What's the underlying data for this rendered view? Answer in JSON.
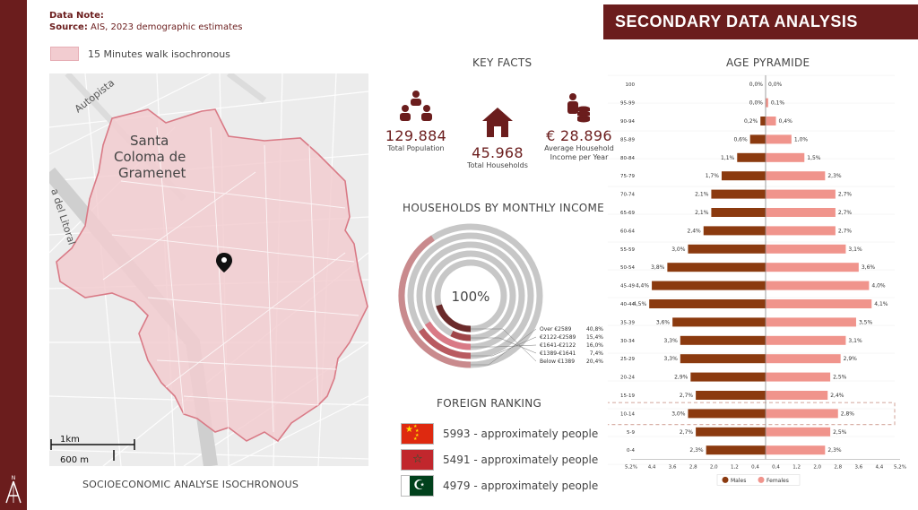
{
  "data_note": {
    "title": "Data Note:",
    "source_label": "Source:",
    "source_text": "AIS, 2023 demographic estimates"
  },
  "map": {
    "legend_label": "15 Minutes walk isochronous",
    "city_line1": "Santa",
    "city_line2": "Coloma de",
    "city_line3": "Gramenet",
    "road_label_1": "Autopista",
    "road_label_2": "a del Litoral",
    "scale_km": "1km",
    "scale_m": "600 m",
    "caption": "SOCIOECONOMIC ANALYSE ISOCHRONOUS",
    "isochrone_fill": "#f2ccd0",
    "isochrone_stroke": "#d97a86"
  },
  "banner": {
    "title": "SECONDARY DATA ANALYSIS"
  },
  "key_facts": {
    "title": "KEY FACTS",
    "population": {
      "value": "129.884",
      "label": "Total Population",
      "icon": "people-icon"
    },
    "households": {
      "value": "45.968",
      "label": "Total Households",
      "icon": "house-icon"
    },
    "income": {
      "value": "€ 28.896",
      "label_line1": "Average Household",
      "label_line2": "Income per Year",
      "icon": "person-coins-icon"
    }
  },
  "income_chart": {
    "title": "HOUSEHOLDS BY MONTHLY INCOME",
    "center_label": "100%",
    "rings": [
      {
        "label": "Over €2589",
        "value": "40,8%",
        "pct": 40.8,
        "color": "#c98a8d"
      },
      {
        "label": "€2122-€2589",
        "value": "15,4%",
        "pct": 15.4,
        "color": "#b95a60"
      },
      {
        "label": "€1641-€2122",
        "value": "16,0%",
        "pct": 16.0,
        "color": "#d97a86"
      },
      {
        "label": "€1389-€1641",
        "value": "7,4%",
        "pct": 7.4,
        "color": "#a04549"
      },
      {
        "label": "Below €1389",
        "value": "20,4%",
        "pct": 20.4,
        "color": "#6b2a2a"
      }
    ],
    "track_color": "#c7c7c7"
  },
  "foreign_ranking": {
    "title": "FOREIGN RANKING",
    "rows": [
      {
        "flag": "china-flag-icon",
        "text": "5993 - approximately people"
      },
      {
        "flag": "morocco-flag-icon",
        "text": "5491 - approximately people"
      },
      {
        "flag": "pakistan-flag-icon",
        "text": "4979 - approximately people"
      }
    ]
  },
  "chart_data": {
    "type": "bar",
    "title": "AGE PYRAMIDE",
    "orientation": "horizontal",
    "categories": [
      "100",
      "95-99",
      "90-94",
      "85-89",
      "80-84",
      "75-79",
      "70-74",
      "65-69",
      "60-64",
      "55-59",
      "50-54",
      "45-49",
      "40-44",
      "35-39",
      "30-34",
      "25-29",
      "20-24",
      "15-19",
      "10-14",
      "5-9",
      "0-4"
    ],
    "series": [
      {
        "name": "Males",
        "color": "#8b3a0f",
        "values": [
          0.0,
          0.0,
          0.2,
          0.6,
          1.1,
          1.7,
          2.1,
          2.1,
          2.4,
          3.0,
          3.8,
          4.4,
          4.5,
          3.6,
          3.3,
          3.3,
          2.9,
          2.7,
          3.0,
          2.7,
          2.3
        ],
        "labels": [
          "0,0%",
          "0,0%",
          "0,2%",
          "0,6%",
          "1,1%",
          "1,7%",
          "2,1%",
          "2,1%",
          "2,4%",
          "3,0%",
          "3,8%",
          "4,4%",
          "4,5%",
          "3,6%",
          "3,3%",
          "3,3%",
          "2,9%",
          "2,7%",
          "3,0%",
          "2,7%",
          "2,3%"
        ]
      },
      {
        "name": "Females",
        "color": "#f0948c",
        "values": [
          0.0,
          0.1,
          0.4,
          1.0,
          1.5,
          2.3,
          2.7,
          2.7,
          2.7,
          3.1,
          3.6,
          4.0,
          4.1,
          3.5,
          3.1,
          2.9,
          2.5,
          2.4,
          2.8,
          2.5,
          2.3
        ],
        "labels": [
          "0,0%",
          "0,1%",
          "0,4%",
          "1,0%",
          "1,5%",
          "2,3%",
          "2,7%",
          "2,7%",
          "2,7%",
          "3,1%",
          "3,6%",
          "4,0%",
          "4,1%",
          "3,5%",
          "3,1%",
          "2,9%",
          "2,5%",
          "2,4%",
          "2,8%",
          "2,5%",
          "2,3%"
        ]
      }
    ],
    "x_ticks": [
      "5,2%",
      "4,4",
      "3,6",
      "2,8",
      "2,0",
      "1,2",
      "0,4",
      "0,4",
      "1,2",
      "2,0",
      "2,8",
      "3,6",
      "4,4",
      "5,2%"
    ],
    "xlim": [
      -5.2,
      5.2
    ],
    "highlight_category": "10-14",
    "legend": [
      "Males",
      "Females"
    ],
    "legend_position": "bottom"
  }
}
